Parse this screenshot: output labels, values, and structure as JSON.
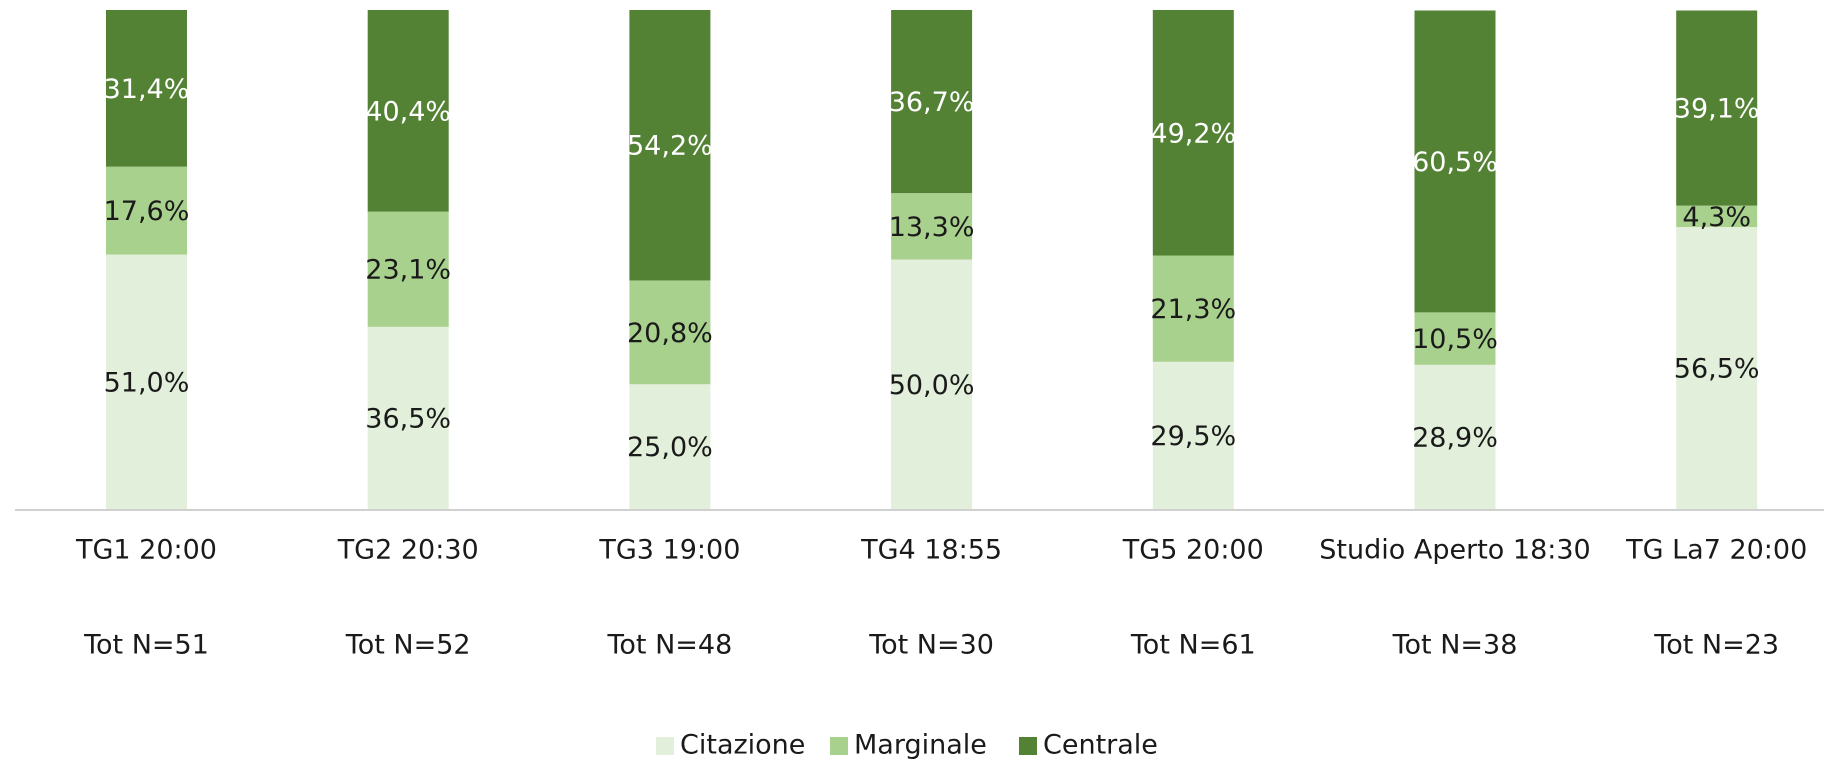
{
  "chart_data": {
    "type": "stacked_bar",
    "categories": [
      "TG1 20:00",
      "TG2 20:30",
      "TG3 19:00",
      "TG4 18:55",
      "TG5 20:00",
      "Studio Aperto 18:30",
      "TG La7 20:00"
    ],
    "category_totals": [
      "Tot N=51",
      "Tot N=52",
      "Tot N=48",
      "Tot N=30",
      "Tot N=61",
      "Tot N=38",
      "Tot N=23"
    ],
    "ylim": [
      0,
      100
    ],
    "series": [
      {
        "name": "Citazione",
        "color": "#e2efda",
        "label_color": "#1a1a1a",
        "values": [
          51.0,
          36.5,
          25.0,
          50.0,
          29.5,
          28.9,
          56.5
        ],
        "value_labels": [
          "51,0%",
          "36,5%",
          "25,0%",
          "50,0%",
          "29,5%",
          "28,9%",
          "56,5%"
        ]
      },
      {
        "name": "Marginale",
        "color": "#a9d18e",
        "label_color": "#1a1a1a",
        "values": [
          17.6,
          23.1,
          20.8,
          13.3,
          21.3,
          10.5,
          4.3
        ],
        "value_labels": [
          "17,6%",
          "23,1%",
          "20,8%",
          "13,3%",
          "21,3%",
          "10,5%",
          "4,3%"
        ]
      },
      {
        "name": "Centrale",
        "color": "#548235",
        "label_color": "#ffffff",
        "values": [
          31.4,
          40.4,
          54.2,
          36.7,
          49.2,
          60.5,
          39.1
        ],
        "value_labels": [
          "31,4%",
          "40,4%",
          "54,2%",
          "36,7%",
          "49,2%",
          "60,5%",
          "39,1%"
        ]
      }
    ],
    "legend": "bottom"
  }
}
